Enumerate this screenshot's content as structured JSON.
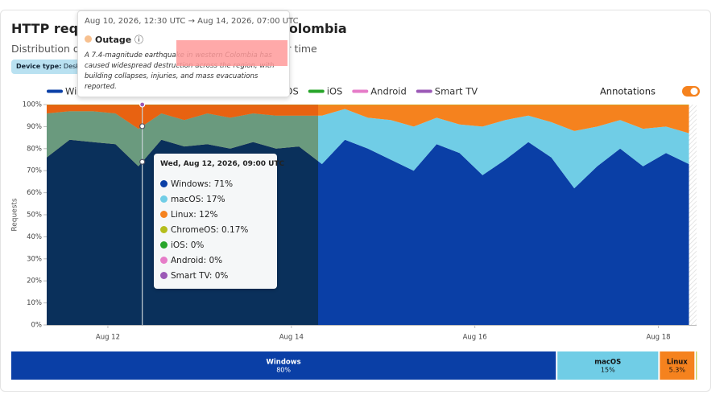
{
  "header": {
    "title": "HTTP requests by OS time series for Colombia",
    "subtitle": "Distribution of HTTP requests by operating system over time",
    "chip_label": "Device type:",
    "chip_value": "Desktop",
    "toggle_label": "Annotations"
  },
  "chart_data": {
    "type": "stacked-area",
    "y_label": "Requests",
    "x": [
      "2026-08-11T08:00",
      "2026-08-11T14:00",
      "2026-08-11T20:00",
      "2026-08-12T02:00",
      "2026-08-12T08:00",
      "2026-08-12T14:00",
      "2026-08-12T20:00",
      "2026-08-13T02:00",
      "2026-08-13T08:00",
      "2026-08-13T14:00",
      "2026-08-13T20:00",
      "2026-08-14T02:00",
      "2026-08-14T08:00",
      "2026-08-14T14:00",
      "2026-08-14T20:00",
      "2026-08-15T02:00",
      "2026-08-15T08:00",
      "2026-08-15T14:00",
      "2026-08-15T20:00",
      "2026-08-16T02:00",
      "2026-08-16T08:00",
      "2026-08-16T14:00",
      "2026-08-16T20:00",
      "2026-08-17T02:00",
      "2026-08-17T08:00",
      "2026-08-17T14:00",
      "2026-08-17T20:00",
      "2026-08-18T02:00",
      "2026-08-18T08:00"
    ],
    "series": [
      {
        "name": "Windows",
        "color": "#0a3fa6",
        "values": [
          76,
          84,
          83,
          82,
          72,
          84,
          81,
          82,
          80,
          83,
          80,
          81,
          73,
          84,
          80,
          75,
          70,
          82,
          78,
          68,
          75,
          83,
          76,
          62,
          72,
          80,
          72,
          78,
          73
        ]
      },
      {
        "name": "macOS",
        "color": "#70cde6",
        "values": [
          20,
          13,
          14,
          14,
          17,
          12,
          12,
          14,
          14,
          13,
          15,
          14,
          22,
          14,
          14,
          18,
          20,
          12,
          13,
          22,
          18,
          12,
          16,
          26,
          18,
          13,
          17,
          12,
          14
        ]
      },
      {
        "name": "Linux",
        "color": "#f5821e",
        "values": [
          3.8,
          2.8,
          2.8,
          3.8,
          10.8,
          3.8,
          6.8,
          3.8,
          5.8,
          3.8,
          4.8,
          4.8,
          4.8,
          1.8,
          5.8,
          6.8,
          9.8,
          5.8,
          8.8,
          9.8,
          6.8,
          4.8,
          7.8,
          11.8,
          9.8,
          6.8,
          10.8,
          9.8,
          12.8
        ]
      },
      {
        "name": "ChromeOS",
        "color": "#b5bd1c",
        "values": [
          0.2,
          0.2,
          0.2,
          0.2,
          0.2,
          0.2,
          0.2,
          0.2,
          0.2,
          0.2,
          0.2,
          0.2,
          0.2,
          0.2,
          0.2,
          0.2,
          0.2,
          0.2,
          0.2,
          0.2,
          0.2,
          0.2,
          0.2,
          0.2,
          0.2,
          0.2,
          0.2,
          0.2,
          0.2
        ]
      },
      {
        "name": "iOS",
        "color": "#28a52a",
        "values": [
          0,
          0,
          0,
          0,
          0,
          0,
          0,
          0,
          0,
          0,
          0,
          0,
          0,
          0,
          0,
          0,
          0,
          0,
          0,
          0,
          0,
          0,
          0,
          0,
          0,
          0,
          0,
          0,
          0
        ]
      },
      {
        "name": "Android",
        "color": "#e67cc8",
        "values": [
          0,
          0,
          0,
          0,
          0,
          0,
          0,
          0,
          0,
          0,
          0,
          0,
          0,
          0,
          0,
          0,
          0,
          0,
          0,
          0,
          0,
          0,
          0,
          0,
          0,
          0,
          0,
          0,
          0
        ]
      },
      {
        "name": "Smart TV",
        "color": "#9b59b6",
        "values": [
          0,
          0,
          0,
          0,
          0,
          0,
          0,
          0,
          0,
          0,
          0,
          0,
          0,
          0,
          0,
          0,
          0,
          0,
          0,
          0,
          0,
          0,
          0,
          0,
          0,
          0,
          0,
          0,
          0
        ]
      }
    ],
    "xlim": [
      "2026-08-11T08:00",
      "2026-08-18T10:00"
    ],
    "xticks": [
      {
        "value": "2026-08-12T00:00",
        "label": "Aug 12"
      },
      {
        "value": "2026-08-14T00:00",
        "label": "Aug 14"
      },
      {
        "value": "2026-08-16T00:00",
        "label": "Aug 16"
      },
      {
        "value": "2026-08-18T00:00",
        "label": "Aug 18"
      }
    ],
    "ylim": [
      0,
      100
    ],
    "yticks": [
      {
        "value": 0,
        "label": "0%"
      },
      {
        "value": 10,
        "label": "10%"
      },
      {
        "value": 20,
        "label": "20%"
      },
      {
        "value": 30,
        "label": "30%"
      },
      {
        "value": 40,
        "label": "40%"
      },
      {
        "value": 50,
        "label": "50%"
      },
      {
        "value": 60,
        "label": "60%"
      },
      {
        "value": 70,
        "label": "70%"
      },
      {
        "value": 80,
        "label": "80%"
      },
      {
        "value": 90,
        "label": "90%"
      },
      {
        "value": 100,
        "label": "100%"
      }
    ]
  },
  "annotation": {
    "from": "Aug 10, 2026, 12:30 UTC",
    "to": "Aug 14, 2026, 07:00 UTC",
    "title": "Outage",
    "description": "A 7.4-magnitude earthquake in western Colombia has caused widespread destruction across the region, with building collapses, injuries, and mass evacuations reported."
  },
  "tooltip": {
    "title": "Wed, Aug 12, 2026, 09:00 UTC",
    "items": [
      "Windows: 71%",
      "macOS: 17%",
      "Linux: 12%",
      "ChromeOS: 0.17%",
      "iOS: 0%",
      "Android: 0%",
      "Smart TV: 0%"
    ]
  },
  "breakdown": {
    "categories": [
      "Windows",
      "macOS",
      "Linux",
      null
    ],
    "values": [
      80,
      15,
      5.3,
      0.2
    ],
    "value_labels": [
      "80%",
      "15%",
      "5.3%",
      null
    ],
    "colors": [
      "#0a3fa6",
      "#70cde6",
      "#f5821e",
      "#b5bd1c"
    ]
  }
}
